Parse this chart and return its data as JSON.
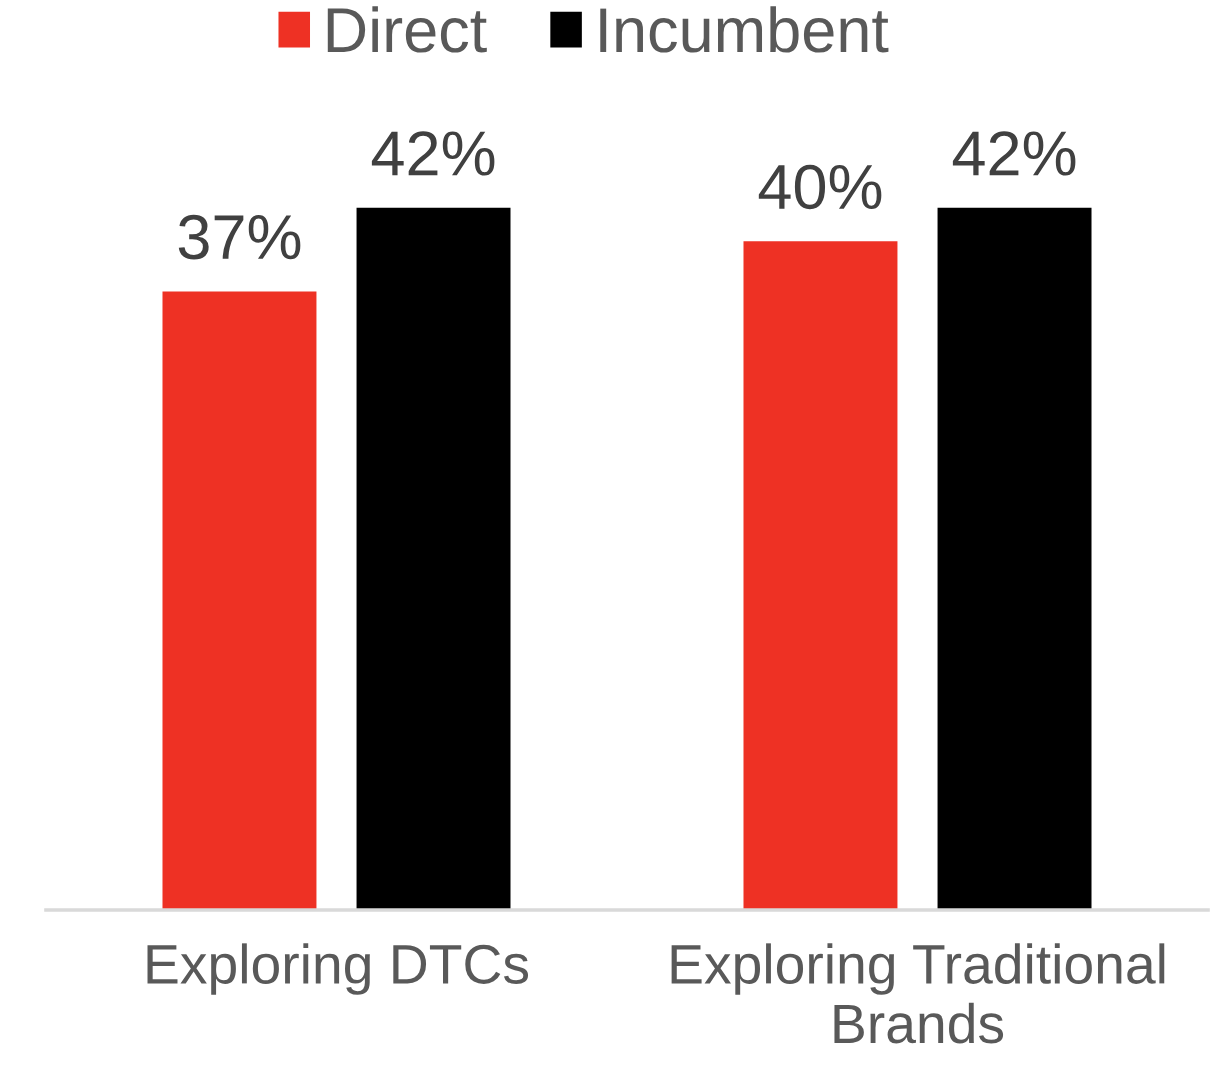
{
  "chart_data": {
    "type": "bar",
    "categories": [
      "Exploring DTCs",
      "Exploring Traditional Brands"
    ],
    "series": [
      {
        "name": "Direct",
        "color": "#ee3124",
        "values": [
          37,
          40
        ],
        "value_labels": [
          "37%",
          "40%"
        ]
      },
      {
        "name": "Incumbent",
        "color": "#000000",
        "values": [
          42,
          42
        ],
        "value_labels": [
          "42%",
          "42%"
        ]
      }
    ],
    "legend": "top",
    "tick_labels": "x"
  }
}
